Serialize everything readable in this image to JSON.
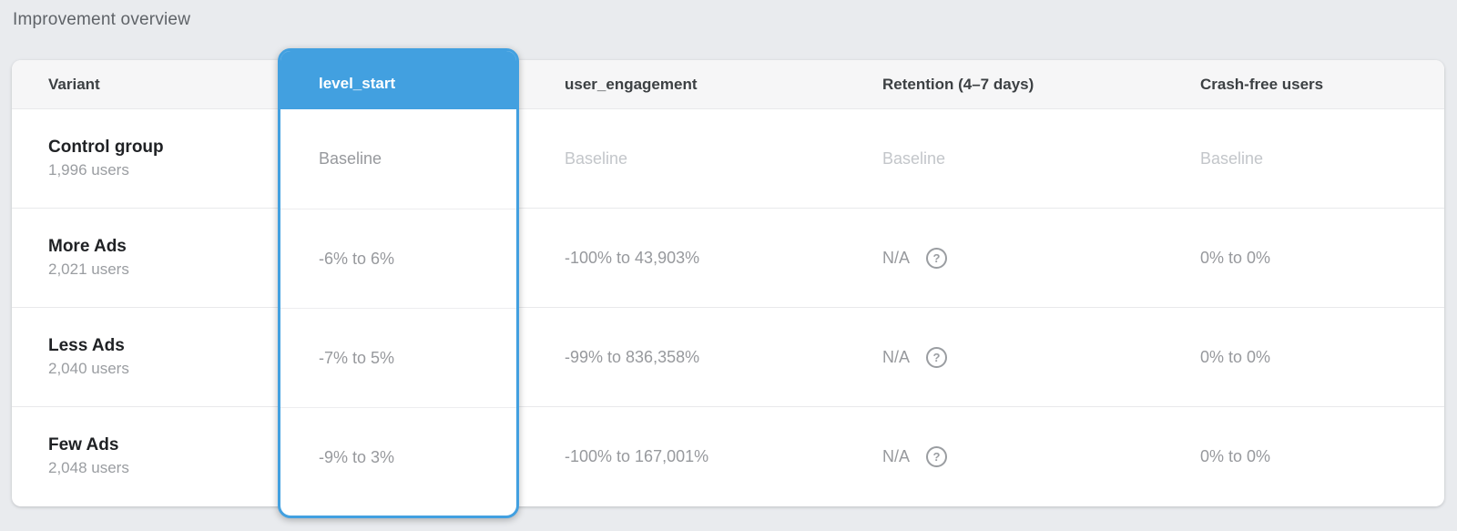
{
  "page": {
    "title": "Improvement overview"
  },
  "colors": {
    "accent_blue": "#42a0e0",
    "baseline_text": "#c3c6ca",
    "value_text": "#97999d"
  },
  "icons": {
    "help_glyph": "?"
  },
  "table": {
    "columns": [
      {
        "id": "variant",
        "label": "Variant",
        "selected": false
      },
      {
        "id": "level_start",
        "label": "level_start",
        "selected": true
      },
      {
        "id": "user_engagement",
        "label": "user_engagement",
        "selected": false
      },
      {
        "id": "retention",
        "label": "Retention (4–7 days)",
        "selected": false
      },
      {
        "id": "crash_free",
        "label": "Crash-free users",
        "selected": false
      }
    ],
    "rows": [
      {
        "variant": "Control group",
        "users": "1,996 users",
        "level_start": "Baseline",
        "user_engagement": "Baseline",
        "retention": "Baseline",
        "crash_free": "Baseline",
        "is_baseline": true
      },
      {
        "variant": "More Ads",
        "users": "2,021 users",
        "level_start": "-6% to 6%",
        "user_engagement": "-100% to 43,903%",
        "retention": "N/A",
        "crash_free": "0% to 0%",
        "is_baseline": false
      },
      {
        "variant": "Less Ads",
        "users": "2,040 users",
        "level_start": "-7% to 5%",
        "user_engagement": "-99% to 836,358%",
        "retention": "N/A",
        "crash_free": "0% to 0%",
        "is_baseline": false
      },
      {
        "variant": "Few Ads",
        "users": "2,048 users",
        "level_start": "-9% to 3%",
        "user_engagement": "-100% to 167,001%",
        "retention": "N/A",
        "crash_free": "0% to 0%",
        "is_baseline": false
      }
    ]
  }
}
